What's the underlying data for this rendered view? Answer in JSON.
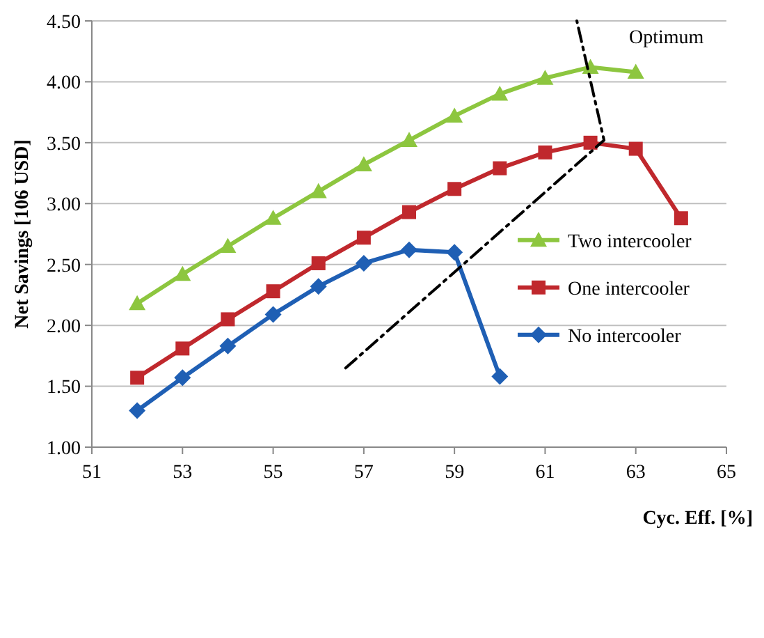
{
  "chart_data": {
    "type": "line",
    "xlabel": "Cyc. Eff. [%]",
    "ylabel": "Net Savings [106 USD]",
    "xlim": [
      51,
      65
    ],
    "xticks": [
      51,
      53,
      55,
      57,
      59,
      61,
      63,
      65
    ],
    "ylim": [
      1,
      4.5
    ],
    "yticks": [
      {
        "value": 1,
        "label": "1.00"
      },
      {
        "value": 1.5,
        "label": "1.50"
      },
      {
        "value": 2,
        "label": "2.00"
      },
      {
        "value": 2.5,
        "label": "2.50"
      },
      {
        "value": 3,
        "label": "3.00"
      },
      {
        "value": 3.5,
        "label": "3.50"
      },
      {
        "value": 4,
        "label": "4.00"
      },
      {
        "value": 4.5,
        "label": "4.50"
      }
    ],
    "grid": "y",
    "legend": "right",
    "series": [
      {
        "name": "Two intercooler",
        "color": "#8dc63f",
        "marker": "triangle",
        "x": [
          52,
          53,
          54,
          55,
          56,
          57,
          58,
          59,
          60,
          61,
          62,
          63
        ],
        "values": [
          2.18,
          2.42,
          2.65,
          2.88,
          3.1,
          3.32,
          3.52,
          3.72,
          3.9,
          4.03,
          4.12,
          4.08
        ]
      },
      {
        "name": "One intercooler",
        "color": "#c0282d",
        "marker": "square",
        "x": [
          52,
          53,
          54,
          55,
          56,
          57,
          58,
          59,
          60,
          61,
          62,
          63,
          64
        ],
        "values": [
          1.57,
          1.81,
          2.05,
          2.28,
          2.51,
          2.72,
          2.93,
          3.12,
          3.29,
          3.42,
          3.5,
          3.45,
          2.88
        ]
      },
      {
        "name": "No intercooler",
        "color": "#1f5fb4",
        "marker": "diamond",
        "x": [
          52,
          53,
          54,
          55,
          56,
          57,
          58,
          59,
          60
        ],
        "values": [
          1.3,
          1.57,
          1.83,
          2.09,
          2.32,
          2.51,
          2.62,
          2.6,
          1.58
        ]
      },
      {
        "color": "#000000",
        "marker": "none",
        "line_style": "dashed",
        "x": [
          56.6,
          62.3,
          61.7
        ],
        "values": [
          1.65,
          3.52,
          4.5
        ]
      }
    ],
    "annotations": [
      "Optimum"
    ]
  }
}
